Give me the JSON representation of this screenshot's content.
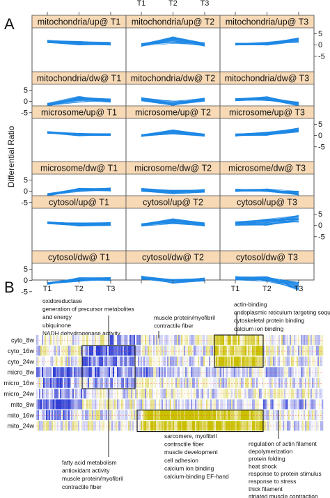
{
  "chart_data": [
    {
      "type": "line",
      "panel_label": "A",
      "ylabel": "Differential Ratio",
      "x": [
        "T1",
        "T2",
        "T3"
      ],
      "top_x_labels": [
        "T1",
        "T2",
        "T3"
      ],
      "ylim": [
        -6,
        7
      ],
      "yticks": [
        "5",
        "0",
        "-5"
      ],
      "line_color": "#1e88e5",
      "strip_color": "#f7d9b6",
      "panels": [
        {
          "title": "mitochondria/up@ T1",
          "row": 0,
          "col": 0,
          "series_mean": [
            1.6,
            0.8,
            0.6
          ],
          "spread": [
            0.6,
            0.9,
            0.7
          ]
        },
        {
          "title": "mitochondria/up@ T2",
          "row": 0,
          "col": 1,
          "series_mean": [
            0.0,
            2.2,
            0.2
          ],
          "spread": [
            0.7,
            1.6,
            0.8
          ]
        },
        {
          "title": "mitochondria/up@ T3",
          "row": 0,
          "col": 2,
          "series_mean": [
            0.4,
            0.6,
            2.2
          ],
          "spread": [
            0.5,
            0.8,
            1.2
          ]
        },
        {
          "title": "mitochondria/dw@ T1",
          "row": 1,
          "col": 0,
          "series_mean": [
            -1.4,
            1.0,
            0.4
          ],
          "spread": [
            0.7,
            1.4,
            0.8
          ]
        },
        {
          "title": "mitochondria/dw@ T2",
          "row": 1,
          "col": 1,
          "series_mean": [
            1.0,
            -0.8,
            0.8
          ],
          "spread": [
            0.8,
            1.0,
            0.8
          ]
        },
        {
          "title": "mitochondria/dw@ T3",
          "row": 1,
          "col": 2,
          "series_mean": [
            0.8,
            1.2,
            -1.2
          ],
          "spread": [
            0.6,
            1.0,
            1.0
          ]
        },
        {
          "title": "microsome/up@ T1",
          "row": 2,
          "col": 0,
          "series_mean": [
            1.4,
            0.4,
            0.4
          ],
          "spread": [
            0.5,
            0.6,
            0.5
          ]
        },
        {
          "title": "microsome/up@ T2",
          "row": 2,
          "col": 1,
          "series_mean": [
            0.0,
            1.6,
            0.2
          ],
          "spread": [
            0.5,
            1.0,
            0.6
          ]
        },
        {
          "title": "microsome/up@ T3",
          "row": 2,
          "col": 2,
          "series_mean": [
            0.2,
            0.8,
            2.4
          ],
          "spread": [
            0.6,
            0.8,
            1.0
          ]
        },
        {
          "title": "microsome/dw@ T1",
          "row": 3,
          "col": 0,
          "series_mean": [
            -1.6,
            0.6,
            0.8
          ],
          "spread": [
            0.6,
            0.9,
            0.8
          ]
        },
        {
          "title": "microsome/dw@ T2",
          "row": 3,
          "col": 1,
          "series_mean": [
            0.6,
            -0.4,
            0.2
          ],
          "spread": [
            0.7,
            0.9,
            0.7
          ]
        },
        {
          "title": "microsome/dw@ T3",
          "row": 3,
          "col": 2,
          "series_mean": [
            0.4,
            0.4,
            -0.8
          ],
          "spread": [
            0.6,
            0.7,
            0.9
          ]
        },
        {
          "title": "cytosol/up@ T1",
          "row": 4,
          "col": 0,
          "series_mean": [
            1.2,
            0.4,
            0.6
          ],
          "spread": [
            0.5,
            0.8,
            0.7
          ]
        },
        {
          "title": "cytosol/up@ T2",
          "row": 4,
          "col": 1,
          "series_mean": [
            0.2,
            1.8,
            0.4
          ],
          "spread": [
            0.6,
            1.2,
            0.8
          ]
        },
        {
          "title": "cytosol/up@ T3",
          "row": 4,
          "col": 2,
          "series_mean": [
            0.8,
            1.4,
            3.0
          ],
          "spread": [
            0.9,
            1.4,
            1.8
          ]
        },
        {
          "title": "cytosol/dw@ T1",
          "row": 5,
          "col": 0,
          "series_mean": [
            -1.4,
            0.4,
            0.6
          ],
          "spread": [
            0.5,
            0.9,
            0.8
          ]
        },
        {
          "title": "cytosol/dw@ T2",
          "row": 5,
          "col": 1,
          "series_mean": [
            1.2,
            -0.4,
            0.4
          ],
          "spread": [
            0.8,
            1.0,
            0.8
          ]
        },
        {
          "title": "cytosol/dw@ T3",
          "row": 5,
          "col": 2,
          "series_mean": [
            1.0,
            0.6,
            -2.6
          ],
          "spread": [
            0.8,
            1.2,
            1.8
          ]
        }
      ]
    },
    {
      "type": "heatmap",
      "panel_label": "B",
      "rows": [
        "cyto_8w",
        "cyto_16w",
        "cyto_24w",
        "micro_8w",
        "micro_16w",
        "micro_24w",
        "mito_8w",
        "mito_16w",
        "mito_24w"
      ],
      "palette": {
        "low": "#2f3fd6",
        "mid": "#ffffff",
        "high": "#c9c000",
        "separator": "#ff3a3a"
      },
      "annotations_top": [
        {
          "id": "anno-top-left",
          "lines": [
            "oxidoreductase",
            "generation of precursor metabolites",
            "   and energy",
            "ubiquinone",
            "NADH dehydrogenase activity"
          ]
        },
        {
          "id": "anno-top-mid",
          "lines": [
            "muscle protein/myofibril",
            "contractile fiber"
          ]
        },
        {
          "id": "anno-top-right",
          "lines": [
            "actin-binding",
            "endoplasmic reticulum targeting sequence",
            "cytoskeletal protein binding",
            "calcium ion binding"
          ]
        }
      ],
      "annotations_bottom": [
        {
          "id": "anno-bottom-left",
          "lines": [
            "fatty acid metabolism",
            "antioxidant activity",
            "muscle protein/myofibril",
            "contractile fiber"
          ]
        },
        {
          "id": "anno-bottom-mid",
          "lines": [
            "sarcomere, myofibril",
            "contractile fiber",
            "muscle development",
            "cell adhesion",
            "calcium ion binding",
            "calcium-binding EF-hand"
          ]
        },
        {
          "id": "anno-bottom-right",
          "lines": [
            "regulation of actin filament",
            "          depolymerization",
            "protein folding",
            "heat shock",
            "response to protein stimulus",
            "response to stress",
            "thick filament",
            "striated muscle contraction"
          ]
        }
      ]
    }
  ]
}
